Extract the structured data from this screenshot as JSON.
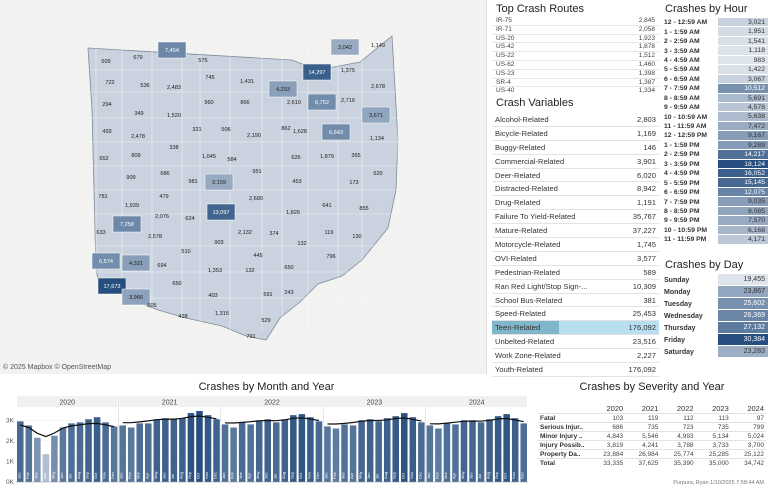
{
  "map": {
    "attribution": "© 2025 Mapbox © OpenStreetMap",
    "counties": [
      {
        "label": "609"
      },
      {
        "label": "679"
      },
      {
        "label": "7,454"
      },
      {
        "label": "575"
      },
      {
        "label": "3,042"
      },
      {
        "label": "1,149"
      },
      {
        "label": "722"
      },
      {
        "label": "536"
      },
      {
        "label": "2,483"
      },
      {
        "label": "745"
      },
      {
        "label": "1,431"
      },
      {
        "label": "4,293"
      },
      {
        "label": "14,297"
      },
      {
        "label": "1,375"
      },
      {
        "label": "2,678"
      },
      {
        "label": "294"
      },
      {
        "label": "960"
      },
      {
        "label": "866"
      },
      {
        "label": "2,610"
      },
      {
        "label": "6,752"
      },
      {
        "label": "2,716"
      },
      {
        "label": "349"
      },
      {
        "label": "1,520"
      },
      {
        "label": "3,671"
      },
      {
        "label": "493"
      },
      {
        "label": "2,478"
      },
      {
        "label": "321"
      },
      {
        "label": "506"
      },
      {
        "label": "862"
      },
      {
        "label": "1,628"
      },
      {
        "label": "6,643"
      },
      {
        "label": "1,134"
      },
      {
        "label": "2,190"
      },
      {
        "label": "338"
      },
      {
        "label": "652"
      },
      {
        "label": "809"
      },
      {
        "label": "1,045"
      },
      {
        "label": "584"
      },
      {
        "label": "626"
      },
      {
        "label": "1,879"
      },
      {
        "label": "365"
      },
      {
        "label": "909"
      },
      {
        "label": "686"
      },
      {
        "label": "981"
      },
      {
        "label": "3,159"
      },
      {
        "label": "951"
      },
      {
        "label": "453"
      },
      {
        "label": "173"
      },
      {
        "label": "620"
      },
      {
        "label": "781"
      },
      {
        "label": "1,939"
      },
      {
        "label": "479"
      },
      {
        "label": "2,680"
      },
      {
        "label": "1,826"
      },
      {
        "label": "641"
      },
      {
        "label": "855"
      },
      {
        "label": "2,076"
      },
      {
        "label": "624"
      },
      {
        "label": "7,258"
      },
      {
        "label": "13,097"
      },
      {
        "label": "633"
      },
      {
        "label": "2,578"
      },
      {
        "label": "2,132"
      },
      {
        "label": "374"
      },
      {
        "label": "119"
      },
      {
        "label": "130"
      },
      {
        "label": "510"
      },
      {
        "label": "903"
      },
      {
        "label": "132"
      },
      {
        "label": "6,574"
      },
      {
        "label": "4,331"
      },
      {
        "label": "694"
      },
      {
        "label": "445"
      },
      {
        "label": "796"
      },
      {
        "label": "17,673"
      },
      {
        "label": "1,353"
      },
      {
        "label": "132"
      },
      {
        "label": "650"
      },
      {
        "label": "3,966"
      },
      {
        "label": "650"
      },
      {
        "label": "243"
      },
      {
        "label": "605"
      },
      {
        "label": "403"
      },
      {
        "label": "591"
      },
      {
        "label": "428"
      },
      {
        "label": "1,315"
      },
      {
        "label": "529"
      },
      {
        "label": "791"
      }
    ]
  },
  "routes": {
    "title": "Top Crash Routes",
    "items": [
      {
        "name": "IR-75",
        "value": "2,845"
      },
      {
        "name": "IR-71",
        "value": "2,058"
      },
      {
        "name": "US-20",
        "value": "1,923"
      },
      {
        "name": "US-42",
        "value": "1,878"
      },
      {
        "name": "US-22",
        "value": "1,512"
      },
      {
        "name": "US-62",
        "value": "1,460"
      },
      {
        "name": "US-23",
        "value": "1,398"
      },
      {
        "name": "SR-4",
        "value": "1,387"
      },
      {
        "name": "US-40",
        "value": "1,334"
      }
    ]
  },
  "variables": {
    "title": "Crash Variables",
    "highlight_color": "#b7dff0",
    "items": [
      {
        "name": "Alcohol-Related",
        "value": "2,803",
        "v": 2803
      },
      {
        "name": "Bicycle-Related",
        "value": "1,169",
        "v": 1169
      },
      {
        "name": "Buggy-Related",
        "value": "146",
        "v": 146
      },
      {
        "name": "Commercial-Related",
        "value": "3,901",
        "v": 3901
      },
      {
        "name": "Deer-Related",
        "value": "6,020",
        "v": 6020
      },
      {
        "name": "Distracted-Related",
        "value": "8,942",
        "v": 8942
      },
      {
        "name": "Drug-Related",
        "value": "1,191",
        "v": 1191
      },
      {
        "name": "Failure To Yield-Related",
        "value": "35,767",
        "v": 35767
      },
      {
        "name": "Mature-Related",
        "value": "37,227",
        "v": 37227
      },
      {
        "name": "Motorcycle-Related",
        "value": "1,745",
        "v": 1745
      },
      {
        "name": "OVI-Related",
        "value": "3,577",
        "v": 3577
      },
      {
        "name": "Pedestrian-Related",
        "value": "589",
        "v": 589
      },
      {
        "name": "Ran Red Light/Stop Sign-...",
        "value": "10,309",
        "v": 10309
      },
      {
        "name": "School Bus-Related",
        "value": "381",
        "v": 381
      },
      {
        "name": "Speed-Related",
        "value": "25,453",
        "v": 25453
      },
      {
        "name": "Teen-Related",
        "value": "176,092",
        "v": 176092,
        "selected": true
      },
      {
        "name": "Unbelted-Related",
        "value": "23,516",
        "v": 23516
      },
      {
        "name": "Work Zone-Related",
        "value": "2,227",
        "v": 2227
      },
      {
        "name": "Youth-Related",
        "value": "176,092",
        "v": 176092
      }
    ]
  },
  "hourly": {
    "title": "Crashes by Hour",
    "items": [
      {
        "hour": "12 - 12:59 AM",
        "value": "3,021",
        "v": 3021
      },
      {
        "hour": "1 - 1:59 AM",
        "value": "1,951",
        "v": 1951
      },
      {
        "hour": "2 - 2:59 AM",
        "value": "1,541",
        "v": 1541
      },
      {
        "hour": "3 - 3:59 AM",
        "value": "1,118",
        "v": 1118
      },
      {
        "hour": "4 - 4:59 AM",
        "value": "983",
        "v": 983
      },
      {
        "hour": "5 - 5:59 AM",
        "value": "1,422",
        "v": 1422
      },
      {
        "hour": "6 - 6:59 AM",
        "value": "3,067",
        "v": 3067
      },
      {
        "hour": "7 - 7:59 AM",
        "value": "10,512",
        "v": 10512
      },
      {
        "hour": "8 - 8:59 AM",
        "value": "5,691",
        "v": 5691
      },
      {
        "hour": "9 - 9:59 AM",
        "value": "4,578",
        "v": 4578
      },
      {
        "hour": "10 - 10:59 AM",
        "value": "5,638",
        "v": 5638
      },
      {
        "hour": "11 - 11:59 AM",
        "value": "7,472",
        "v": 7472
      },
      {
        "hour": "12 - 12:59 PM",
        "value": "9,167",
        "v": 9167
      },
      {
        "hour": "1 - 1:59 PM",
        "value": "9,289",
        "v": 9289
      },
      {
        "hour": "2 - 2:59 PM",
        "value": "14,217",
        "v": 14217
      },
      {
        "hour": "3 - 3:59 PM",
        "value": "18,124",
        "v": 18124
      },
      {
        "hour": "4 - 4:59 PM",
        "value": "16,052",
        "v": 16052
      },
      {
        "hour": "5 - 5:59 PM",
        "value": "15,145",
        "v": 15145
      },
      {
        "hour": "6 - 6:59 PM",
        "value": "12,075",
        "v": 12075
      },
      {
        "hour": "7 - 7:59 PM",
        "value": "9,035",
        "v": 9035
      },
      {
        "hour": "8 - 8:59 PM",
        "value": "8,085",
        "v": 8085
      },
      {
        "hour": "9 - 9:59 PM",
        "value": "7,570",
        "v": 7570
      },
      {
        "hour": "10 - 10:59 PM",
        "value": "6,168",
        "v": 6168
      },
      {
        "hour": "11 - 11:59 PM",
        "value": "4,171",
        "v": 4171
      }
    ]
  },
  "daily": {
    "title": "Crashes by Day",
    "items": [
      {
        "day": "Sunday",
        "value": "19,455",
        "v": 19455
      },
      {
        "day": "Monday",
        "value": "23,867",
        "v": 23867
      },
      {
        "day": "Tuesday",
        "value": "25,602",
        "v": 25602
      },
      {
        "day": "Wednesday",
        "value": "26,369",
        "v": 26369
      },
      {
        "day": "Thursday",
        "value": "27,132",
        "v": 27132
      },
      {
        "day": "Friday",
        "value": "30,384",
        "v": 30384
      },
      {
        "day": "Saturday",
        "value": "23,283",
        "v": 23283
      }
    ]
  },
  "monthly": {
    "title": "Crashes by Month and Year"
  },
  "severity": {
    "title": "Crashes by Severity and Year",
    "years": [
      "2020",
      "2021",
      "2022",
      "2023",
      "2024"
    ],
    "rows": [
      {
        "name": "Fatal",
        "values": [
          "103",
          "119",
          "112",
          "113",
          "97"
        ]
      },
      {
        "name": "Serious Injur..",
        "values": [
          "686",
          "735",
          "723",
          "735",
          "799"
        ]
      },
      {
        "name": "Minor Injury ..",
        "values": [
          "4,843",
          "5,546",
          "4,993",
          "5,134",
          "5,024"
        ]
      },
      {
        "name": "Injury Possib..",
        "values": [
          "3,819",
          "4,241",
          "3,788",
          "3,733",
          "3,700"
        ]
      },
      {
        "name": "Property Da..",
        "values": [
          "23,884",
          "26,984",
          "25,774",
          "25,285",
          "25,122"
        ]
      },
      {
        "name": "Total",
        "values": [
          "33,335",
          "37,625",
          "35,390",
          "35,000",
          "34,742"
        ]
      }
    ]
  },
  "footer": "Purpura, Ryan 1/10/2025 7:58:44 AM",
  "colors": {
    "dark": "#2a5783",
    "light": "#dfe6ee",
    "border": "#7f8c99"
  },
  "chart_data": {
    "type": "bar",
    "title": "Crashes by Month and Year",
    "years": [
      "2020",
      "2021",
      "2022",
      "2023",
      "2024"
    ],
    "categories": [
      "Jan",
      "Feb",
      "Mar",
      "Apr",
      "May",
      "Jun",
      "Jul",
      "Aug",
      "Sep",
      "Oct",
      "Nov",
      "Dec"
    ],
    "yticks": [
      "0K",
      "1K",
      "2K",
      "3K"
    ],
    "ylim": [
      0,
      3500
    ],
    "series": [
      {
        "name": "2020",
        "values": [
          2950,
          2750,
          2150,
          1350,
          2250,
          2650,
          2850,
          2900,
          3050,
          3150,
          2900,
          2700
        ]
      },
      {
        "name": "2021",
        "values": [
          2750,
          2650,
          2850,
          2850,
          3050,
          3100,
          3050,
          3100,
          3350,
          3450,
          3250,
          3050
        ]
      },
      {
        "name": "2022",
        "values": [
          2800,
          2650,
          2900,
          2800,
          3000,
          3050,
          2900,
          3050,
          3250,
          3300,
          3150,
          2950
        ]
      },
      {
        "name": "2023",
        "values": [
          2700,
          2600,
          2800,
          2750,
          3000,
          3050,
          2950,
          3100,
          3200,
          3350,
          3150,
          2900
        ]
      },
      {
        "name": "2024",
        "values": [
          2750,
          2600,
          2850,
          2800,
          3000,
          3000,
          2900,
          3050,
          3200,
          3300,
          3100,
          2850
        ]
      }
    ]
  }
}
